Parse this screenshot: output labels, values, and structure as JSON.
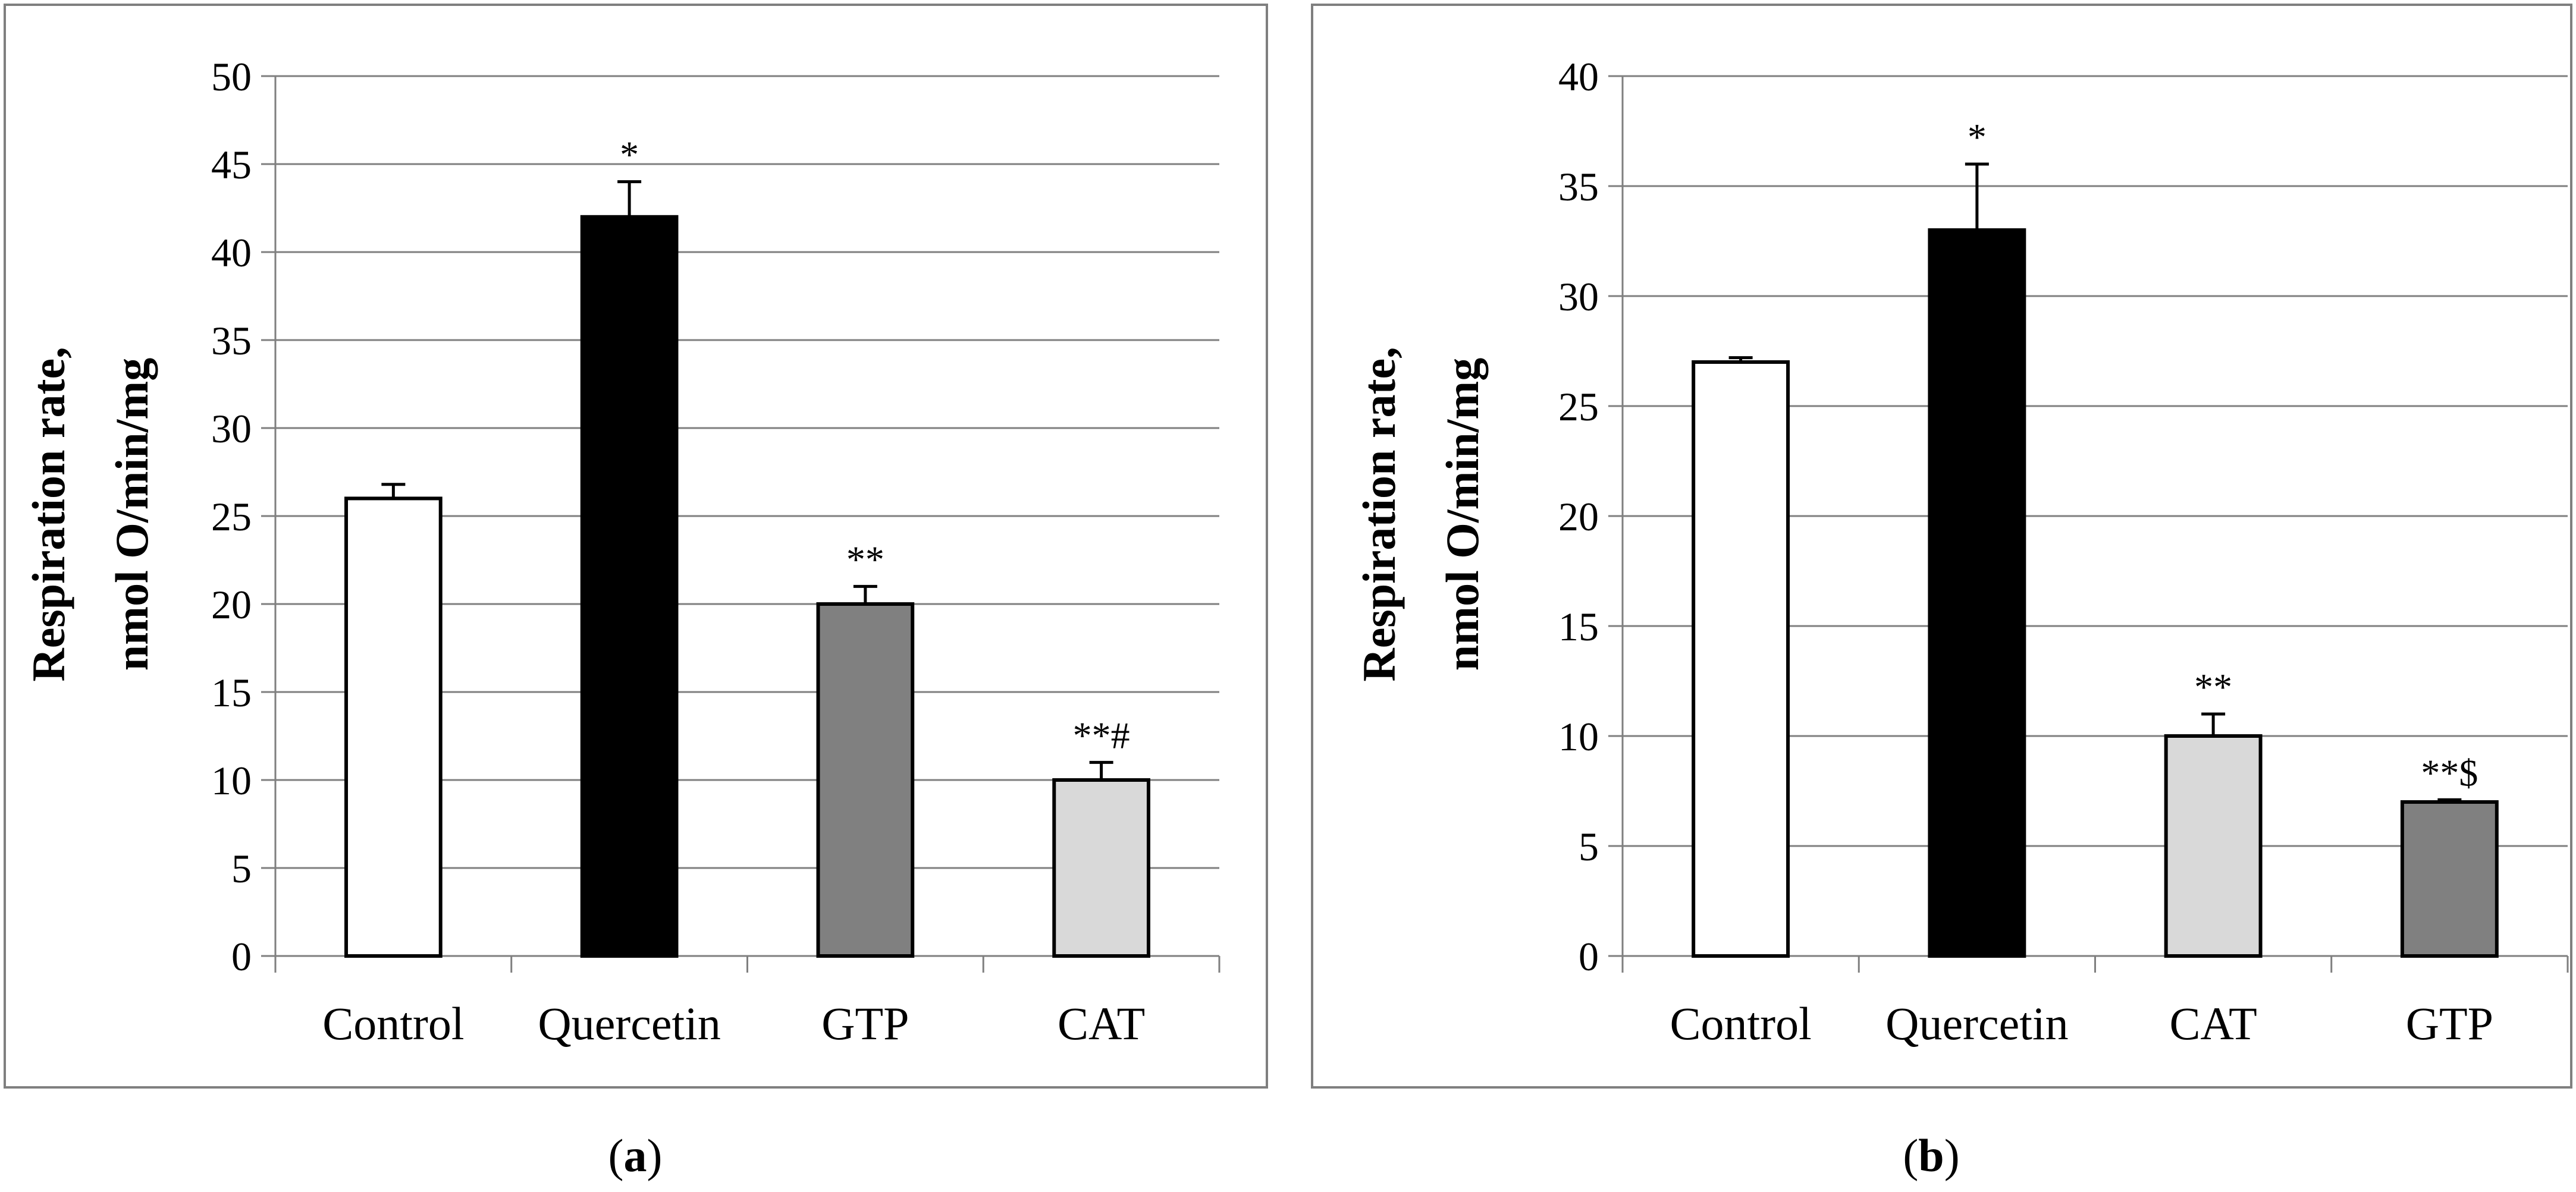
{
  "colors": {
    "frame": "#7f7f7f",
    "gridline": "#7f7f7f",
    "bar_outline": "#000000",
    "white": "#ffffff",
    "black": "#000000",
    "dark_gray": "#808080",
    "light_gray": "#d9d9d9"
  },
  "chart_data": [
    {
      "type": "bar",
      "panel_label": "a",
      "ylabel_line1": "Respiration rate,",
      "ylabel_line2": "nmol O/min/mg",
      "ylim": [
        0,
        50
      ],
      "ystep": 5,
      "yticks": [
        "0",
        "5",
        "10",
        "15",
        "20",
        "25",
        "30",
        "35",
        "40",
        "45",
        "50"
      ],
      "grid": true,
      "categories": [
        "Control",
        "Quercetin",
        "GTP",
        "CAT"
      ],
      "values": [
        26,
        42,
        20,
        10
      ],
      "errors": [
        0.8,
        2,
        1,
        1
      ],
      "bar_colors": [
        "white",
        "black",
        "dark_gray",
        "light_gray"
      ],
      "annotations": [
        "",
        "*",
        "**",
        "**#"
      ]
    },
    {
      "type": "bar",
      "panel_label": "b",
      "ylabel_line1": "Respiration rate,",
      "ylabel_line2": "nmol O/min/mg",
      "ylim": [
        0,
        40
      ],
      "ystep": 5,
      "yticks": [
        "0",
        "5",
        "10",
        "15",
        "20",
        "25",
        "30",
        "35",
        "40"
      ],
      "grid": true,
      "categories": [
        "Control",
        "Quercetin",
        "CAT",
        "GTP"
      ],
      "values": [
        27,
        33,
        10,
        7
      ],
      "errors": [
        0.2,
        3,
        1,
        0.1
      ],
      "bar_colors": [
        "white",
        "black",
        "light_gray",
        "dark_gray"
      ],
      "annotations": [
        "",
        "*",
        "**",
        "**$"
      ]
    }
  ]
}
